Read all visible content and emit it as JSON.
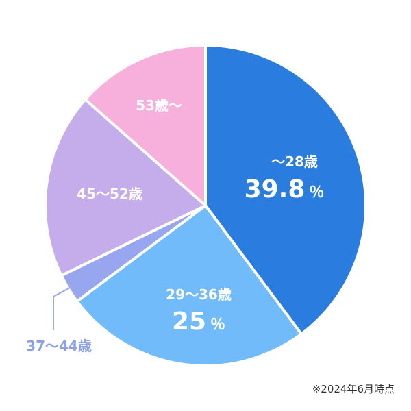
{
  "chart_data": {
    "type": "pie",
    "start": "top",
    "direction": "clockwise",
    "categories": [
      "〜28歳",
      "29〜36歳",
      "37〜44歳",
      "45〜52歳",
      "53歳〜"
    ],
    "values": [
      39.8,
      25,
      3,
      18.7,
      13.5
    ],
    "value_labels": [
      "39.8",
      "25",
      "",
      "",
      ""
    ],
    "unit": "％",
    "colors": [
      "#2a7cde",
      "#72bbfb",
      "#97a6ee",
      "#c5acea",
      "#f7afdc"
    ],
    "external_label_color": "#8aa0e8",
    "leader_line_color": "#9aa8e6"
  },
  "footnote": "※2024年6月時点"
}
